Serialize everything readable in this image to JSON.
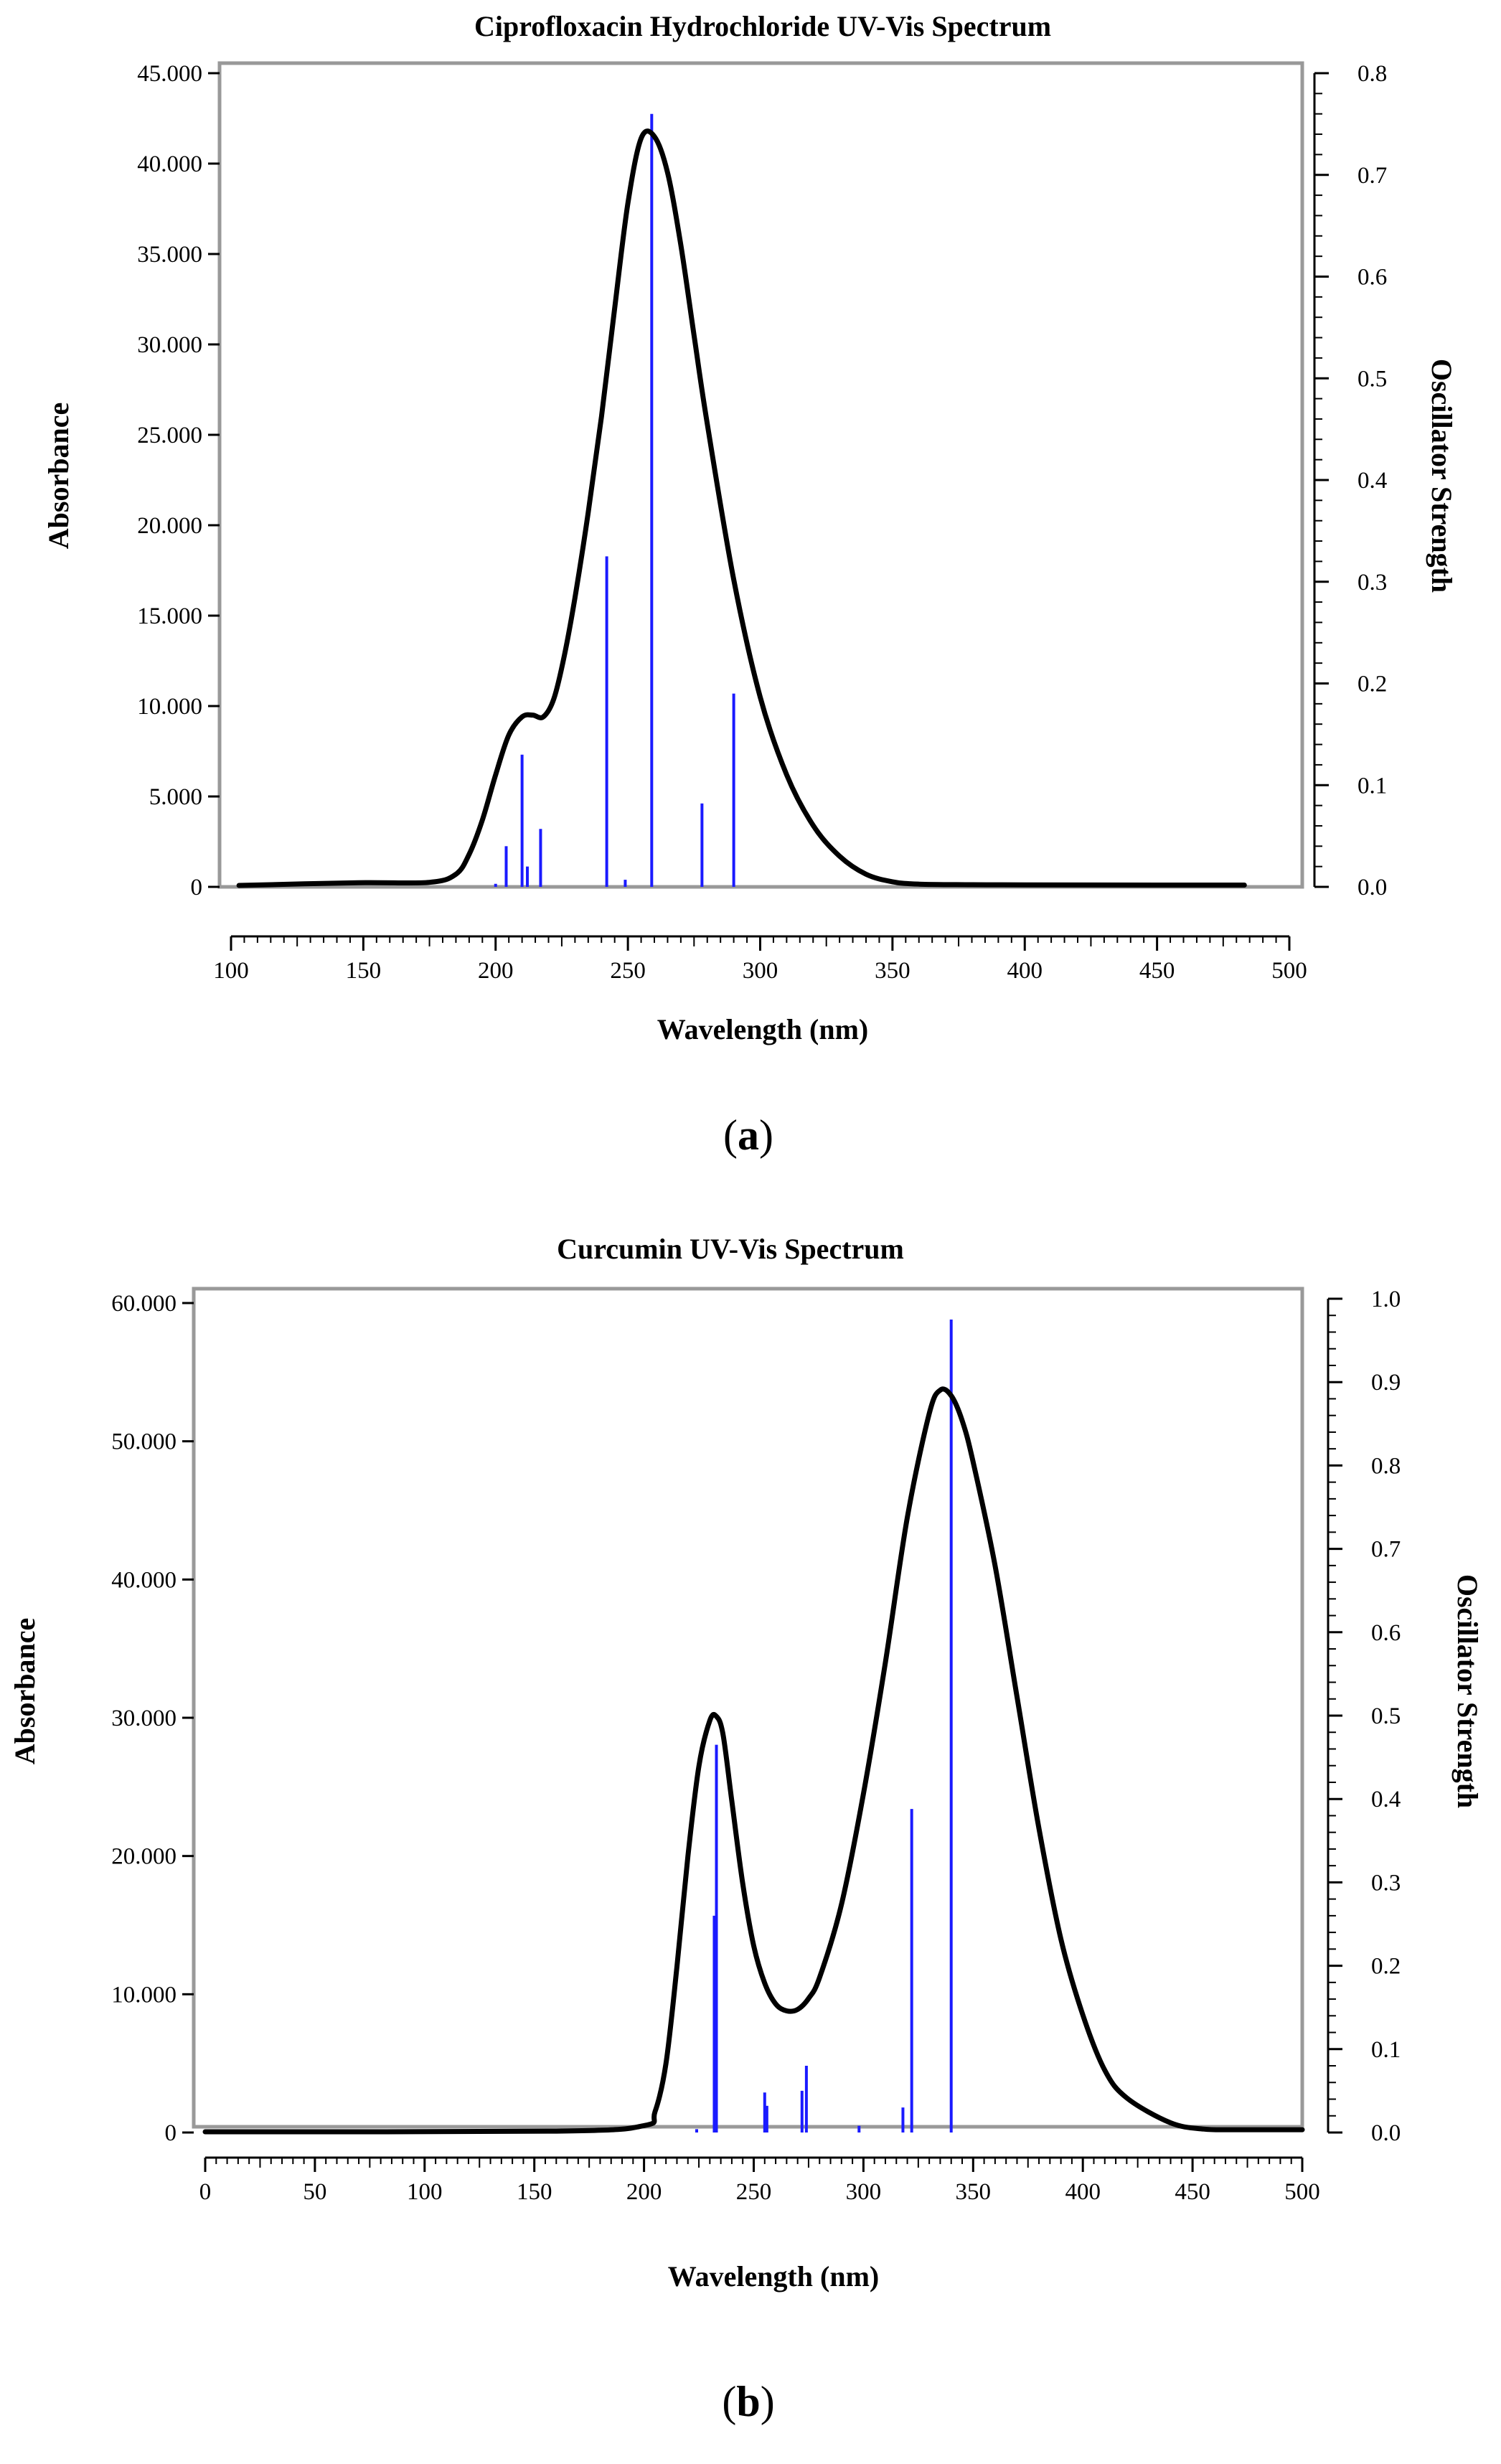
{
  "chart_data": [
    {
      "type": "line",
      "panel_label": "a",
      "title": "Ciprofloxacin Hydrochloride UV-Vis Spectrum",
      "xlabel": "Wavelength (nm)",
      "ylabel": "Absorbance",
      "y2label": "Oscillator Strength",
      "xlim": [
        100,
        500
      ],
      "ylim": [
        0,
        45000
      ],
      "y2lim": [
        0,
        0.8
      ],
      "x_ticks": [
        100,
        150,
        200,
        250,
        300,
        350,
        400,
        450,
        500
      ],
      "y_ticks": [
        "0",
        "5.000",
        "10.000",
        "15.000",
        "20.000",
        "25.000",
        "30.000",
        "35.000",
        "40.000",
        "45.000"
      ],
      "y2_ticks": [
        "0.0",
        "0.1",
        "0.2",
        "0.3",
        "0.4",
        "0.5",
        "0.6",
        "0.7",
        "0.8"
      ],
      "series": [
        {
          "name": "Absorbance",
          "color": "#000000",
          "x": [
            103,
            148,
            175,
            185,
            190,
            195,
            200,
            205,
            210,
            214,
            218,
            222,
            226,
            230,
            235,
            240,
            245,
            250,
            255,
            260,
            265,
            270,
            275,
            280,
            290,
            300,
            310,
            320,
            330,
            340,
            350,
            360,
            380,
            400,
            450,
            483
          ],
          "y": [
            80,
            230,
            250,
            700,
            1800,
            3700,
            6200,
            8400,
            9400,
            9500,
            9400,
            10400,
            12800,
            16000,
            20700,
            26000,
            32000,
            37800,
            41400,
            41500,
            39500,
            35500,
            30500,
            25600,
            17000,
            10500,
            6200,
            3400,
            1700,
            700,
            280,
            150,
            120,
            110,
            100,
            100
          ]
        }
      ],
      "sticks": {
        "name": "Oscillator Strength",
        "color": "#1a1aff",
        "x": [
          200,
          204,
          210,
          212,
          217,
          242,
          249,
          259,
          278,
          290
        ],
        "y": [
          0.003,
          0.04,
          0.13,
          0.02,
          0.057,
          0.325,
          0.007,
          0.76,
          0.082,
          0.19
        ]
      }
    },
    {
      "type": "line",
      "panel_label": "b",
      "title": "Curcumin UV-Vis Spectrum",
      "xlabel": "Wavelength (nm)",
      "ylabel": "Absorbance",
      "y2label": "Oscillator Strength",
      "xlim": [
        0,
        500
      ],
      "ylim": [
        0,
        60000
      ],
      "y2lim": [
        0,
        1.0
      ],
      "x_ticks": [
        0,
        50,
        100,
        150,
        200,
        250,
        300,
        350,
        400,
        450,
        500
      ],
      "y_ticks": [
        "0",
        "10.000",
        "20.000",
        "30.000",
        "40.000",
        "50.000",
        "60.000"
      ],
      "y2_ticks": [
        "0.0",
        "0.1",
        "0.2",
        "0.3",
        "0.4",
        "0.5",
        "0.6",
        "0.7",
        "0.8",
        "0.9",
        "1.0"
      ],
      "series": [
        {
          "name": "Absorbance",
          "color": "#000000",
          "x": [
            0,
            160,
            200,
            205,
            210,
            215,
            220,
            225,
            230,
            233,
            236,
            240,
            245,
            250,
            255,
            260,
            265,
            270,
            275,
            280,
            290,
            300,
            310,
            320,
            330,
            335,
            340,
            345,
            350,
            360,
            370,
            380,
            390,
            400,
            410,
            420,
            440,
            455,
            470,
            500
          ],
          "y": [
            50,
            100,
            500,
            1500,
            5000,
            12000,
            20000,
            26500,
            29800,
            30100,
            28800,
            24000,
            18000,
            13500,
            10800,
            9300,
            8800,
            8900,
            9700,
            11200,
            16500,
            24500,
            34000,
            44500,
            52000,
            53700,
            53300,
            51500,
            48500,
            41000,
            31500,
            22000,
            14000,
            8500,
            4500,
            2500,
            700,
            250,
            200,
            200
          ]
        }
      ],
      "sticks": {
        "name": "Oscillator Strength",
        "color": "#1a1aff",
        "x": [
          224,
          232,
          233,
          255,
          256,
          272,
          274,
          298,
          318,
          322,
          340
        ],
        "y": [
          0.004,
          0.26,
          0.465,
          0.048,
          0.032,
          0.05,
          0.08,
          0.008,
          0.03,
          0.388,
          0.975
        ]
      }
    }
  ]
}
